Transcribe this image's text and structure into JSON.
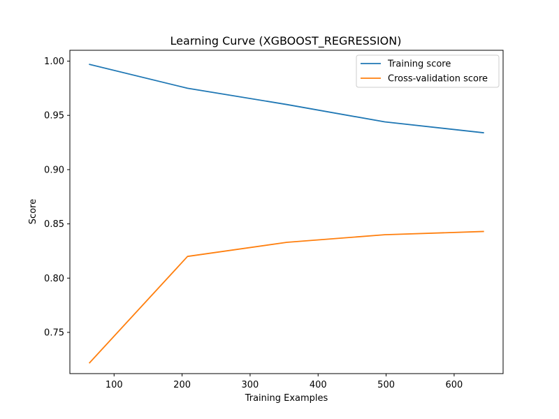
{
  "chart_data": {
    "type": "line",
    "title": "Learning Curve (XGBOOST_REGRESSION)",
    "xlabel": "Training Examples",
    "ylabel": "Score",
    "xlim": [
      35,
      672
    ],
    "ylim": [
      0.712,
      1.01
    ],
    "xticks": [
      100,
      200,
      300,
      400,
      500,
      600
    ],
    "yticks": [
      0.75,
      0.8,
      0.85,
      0.9,
      0.95,
      1.0
    ],
    "xtick_labels": [
      "100",
      "200",
      "300",
      "400",
      "500",
      "600"
    ],
    "ytick_labels": [
      "0.75",
      "0.80",
      "0.85",
      "0.90",
      "0.95",
      "1.00"
    ],
    "legend_position": "top-right",
    "grid": false,
    "x": [
      64,
      208,
      354,
      498,
      643
    ],
    "series": [
      {
        "name": "Training score",
        "color": "#1f77b4",
        "values": [
          0.997,
          0.975,
          0.96,
          0.944,
          0.934
        ]
      },
      {
        "name": "Cross-validation score",
        "color": "#ff7f0e",
        "values": [
          0.722,
          0.82,
          0.833,
          0.84,
          0.843
        ]
      }
    ]
  }
}
